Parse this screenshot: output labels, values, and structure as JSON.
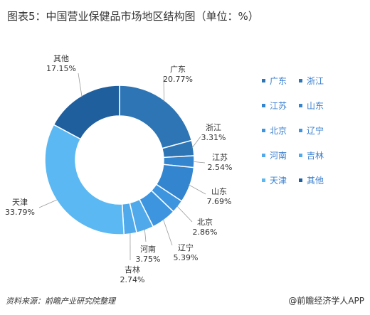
{
  "title": "图表5：中国营业保健品市场地区结构图（单位：%）",
  "source": "资料来源：前瞻产业研究院整理",
  "brand": "@前瞻经济学人APP",
  "chart_data": {
    "type": "pie",
    "donut": true,
    "unit": "%",
    "legend_position": "right",
    "slices": [
      {
        "name": "广东",
        "value": 20.77,
        "label": "20.77%",
        "color": "#2e75b6"
      },
      {
        "name": "浙江",
        "value": 3.31,
        "label": "3.31%",
        "color": "#2e75b6"
      },
      {
        "name": "江苏",
        "value": 2.54,
        "label": "2.54%",
        "color": "#3485cf"
      },
      {
        "name": "山东",
        "value": 7.69,
        "label": "7.69%",
        "color": "#3485cf"
      },
      {
        "name": "北京",
        "value": 2.86,
        "label": "2.86%",
        "color": "#3d95e0"
      },
      {
        "name": "辽宁",
        "value": 5.39,
        "label": "5.39%",
        "color": "#3d95e0"
      },
      {
        "name": "河南",
        "value": 3.75,
        "label": "3.75%",
        "color": "#4fa9ea"
      },
      {
        "name": "吉林",
        "value": 2.74,
        "label": "2.74%",
        "color": "#4fa9ea"
      },
      {
        "name": "天津",
        "value": 33.79,
        "label": "33.79%",
        "color": "#5bb8f2"
      },
      {
        "name": "其他",
        "value": 17.15,
        "label": "17.15%",
        "color": "#1f5f9e"
      }
    ],
    "legend": [
      "广东",
      "浙江",
      "江苏",
      "山东",
      "北京",
      "辽宁",
      "河南",
      "吉林",
      "天津",
      "其他"
    ]
  }
}
